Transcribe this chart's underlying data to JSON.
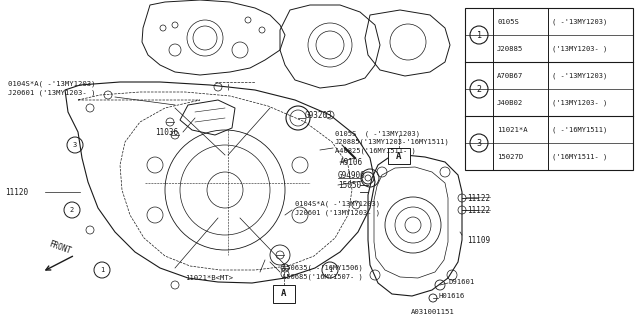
{
  "bg_color": "#ffffff",
  "diagram_color": "#1a1a1a",
  "table": {
    "rows": [
      {
        "num": "1",
        "part1": "0105S",
        "desc1": "( -'13MY1203)",
        "part2": "J20885",
        "desc2": "('13MY1203- )"
      },
      {
        "num": "2",
        "part1": "A70B67",
        "desc1": "( -'13MY1203)",
        "part2": "J40B02",
        "desc2": "('13MY1203- )"
      },
      {
        "num": "3",
        "part1": "11021*A",
        "desc1": "( -'16MY1511)",
        "part2": "15027D",
        "desc2": "('16MY1511- )"
      }
    ]
  },
  "labels": {
    "top_left": "0104S*A( -'13MY1203)\nJ20601 ('13MY1203- )",
    "l11036": "11036",
    "lG93203": "G93203",
    "l0105S_block": "0105S  ( -'13MY1203)\nJ20885('13MY1203-'16MY1511)\nA40825('16MY1511- )",
    "lA9106": "A9106",
    "lG94906": "G94906",
    "l15050": "15050",
    "l11120": "11120",
    "l0104SA_lower": "0104S*A( -'13MY1203)\nJ20601 ('13MY1203- )",
    "l11021B": "11021*B<MT>",
    "lA50635": "A50635( -'16MY1506)\nA50685('16MY1507- )",
    "l11122a": "11122",
    "l11122b": "11122",
    "l11109": "11109",
    "lD91601": "D91601",
    "lH01616": "H01616",
    "lcode": "A031001151"
  }
}
